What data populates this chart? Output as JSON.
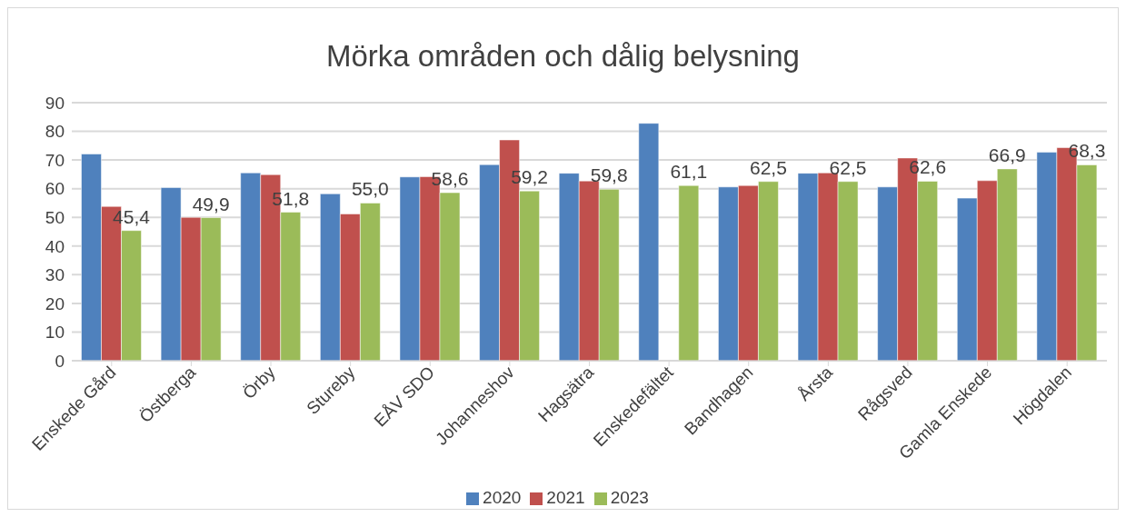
{
  "chart_data": {
    "type": "bar",
    "title": "Mörka områden och dålig belysning",
    "categories": [
      "Enskede Gård",
      "Östberga",
      "Örby",
      "Stureby",
      "EÅV SDO",
      "Johanneshov",
      "Hagsätra",
      "Enskedefältet",
      "Bandhagen",
      "Årsta",
      "Rågsved",
      "Gamla Enskede",
      "Högdalen"
    ],
    "series": [
      {
        "name": "2020",
        "color": "#4f81bd",
        "values": [
          72.1,
          60.4,
          65.5,
          58.2,
          64.1,
          68.4,
          65.4,
          82.8,
          60.6,
          65.4,
          60.6,
          56.7,
          72.7
        ]
      },
      {
        "name": "2021",
        "color": "#c0504d",
        "values": [
          53.8,
          50.0,
          64.9,
          51.2,
          64.2,
          77.0,
          62.7,
          null,
          61.1,
          65.5,
          70.7,
          62.8,
          74.3
        ]
      },
      {
        "name": "2023",
        "color": "#9bbb59",
        "values": [
          45.4,
          49.9,
          51.8,
          55.0,
          58.6,
          59.2,
          59.8,
          61.1,
          62.5,
          62.5,
          62.6,
          66.9,
          68.3
        ],
        "value_labels": [
          "45,4",
          "49,9",
          "51,8",
          "55,0",
          "58,6",
          "59,2",
          "59,8",
          "61,1",
          "62,5",
          "62,5",
          "62,6",
          "66,9",
          "68,3"
        ]
      }
    ],
    "ylim": [
      0,
      90
    ],
    "yticks": [
      0,
      10,
      20,
      30,
      40,
      50,
      60,
      70,
      80,
      90
    ],
    "grid": "y",
    "legend": "bottom"
  }
}
